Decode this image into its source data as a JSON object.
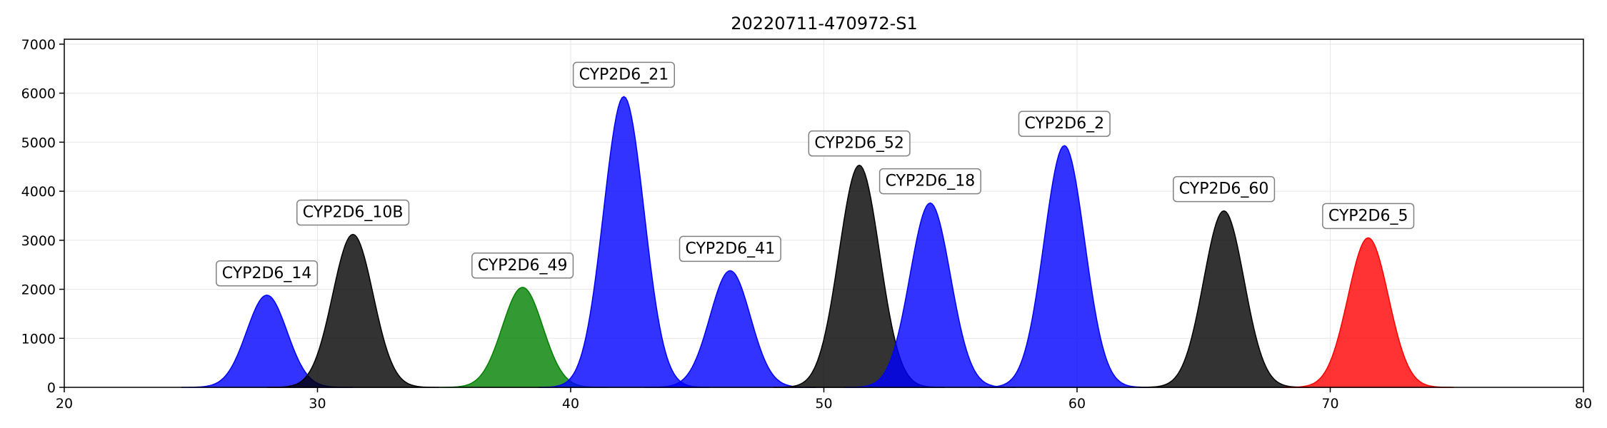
{
  "chart_data": {
    "type": "area",
    "title": "20220711-470972-S1",
    "xlabel": "",
    "ylabel": "",
    "xlim": [
      20,
      80
    ],
    "ylim": [
      0,
      7100
    ],
    "x_ticks": [
      20,
      30,
      40,
      50,
      60,
      70,
      80
    ],
    "y_ticks": [
      0,
      1000,
      2000,
      3000,
      4000,
      5000,
      6000,
      7000
    ],
    "grid": true,
    "legend": "none",
    "peak_sigma": 0.8,
    "peaks": [
      {
        "label": "CYP2D6_14",
        "center": 28.0,
        "height": 1880,
        "color": "#0000ff"
      },
      {
        "label": "CYP2D6_10B",
        "center": 31.4,
        "height": 3120,
        "color": "#000000"
      },
      {
        "label": "CYP2D6_49",
        "center": 38.1,
        "height": 2040,
        "color": "#008000"
      },
      {
        "label": "CYP2D6_21",
        "center": 42.1,
        "height": 5930,
        "color": "#0000ff"
      },
      {
        "label": "CYP2D6_41",
        "center": 46.3,
        "height": 2380,
        "color": "#0000ff"
      },
      {
        "label": "CYP2D6_52",
        "center": 51.4,
        "height": 4530,
        "color": "#000000"
      },
      {
        "label": "CYP2D6_18",
        "center": 54.2,
        "height": 3760,
        "color": "#0000ff"
      },
      {
        "label": "CYP2D6_2",
        "center": 59.5,
        "height": 4930,
        "color": "#0000ff"
      },
      {
        "label": "CYP2D6_60",
        "center": 65.8,
        "height": 3600,
        "color": "#000000"
      },
      {
        "label": "CYP2D6_5",
        "center": 71.5,
        "height": 3050,
        "color": "#ff0000"
      }
    ]
  }
}
